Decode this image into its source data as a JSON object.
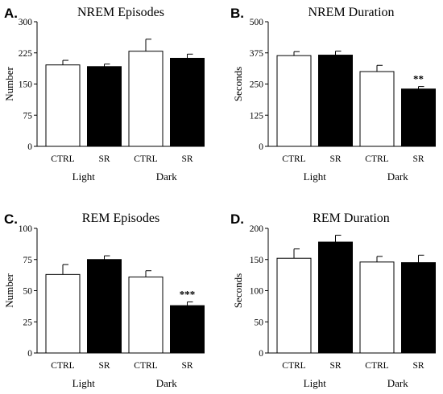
{
  "chart_data": [
    {
      "type": "bar",
      "letter": "A.",
      "title": "NREM Episodes",
      "ylabel": "Number",
      "ylim": [
        0,
        300
      ],
      "yticks": [
        0,
        75,
        150,
        225,
        300
      ],
      "ytick_labels": [
        "0",
        "75",
        "150",
        "225",
        "300"
      ],
      "categories": [
        "CTRL",
        "SR",
        "CTRL",
        "SR"
      ],
      "groups": [
        "Light",
        "Dark"
      ],
      "values": [
        196,
        192,
        229,
        212
      ],
      "errors": [
        11,
        6,
        29,
        10
      ],
      "fills": [
        "#ffffff",
        "#000000",
        "#ffffff",
        "#000000"
      ],
      "significance": [
        "",
        "",
        "",
        ""
      ]
    },
    {
      "type": "bar",
      "letter": "B.",
      "title": "NREM Duration",
      "ylabel": "Seconds",
      "ylim": [
        0,
        500
      ],
      "yticks": [
        0,
        125,
        250,
        375,
        500
      ],
      "ytick_labels": [
        "0",
        "125",
        "250",
        "375",
        "500"
      ],
      "categories": [
        "CTRL",
        "SR",
        "CTRL",
        "SR"
      ],
      "groups": [
        "Light",
        "Dark"
      ],
      "values": [
        364,
        366,
        300,
        230
      ],
      "errors": [
        16,
        16,
        25,
        10
      ],
      "fills": [
        "#ffffff",
        "#000000",
        "#ffffff",
        "#000000"
      ],
      "significance": [
        "",
        "",
        "",
        "**"
      ]
    },
    {
      "type": "bar",
      "letter": "C.",
      "title": "REM Episodes",
      "ylabel": "Number",
      "ylim": [
        0,
        100
      ],
      "yticks": [
        0,
        25,
        50,
        75,
        100
      ],
      "ytick_labels": [
        "0",
        "25",
        "50",
        "75",
        "100"
      ],
      "categories": [
        "CTRL",
        "SR",
        "CTRL",
        "SR"
      ],
      "groups": [
        "Light",
        "Dark"
      ],
      "values": [
        63,
        75,
        61,
        38
      ],
      "errors": [
        8,
        3,
        5,
        3
      ],
      "fills": [
        "#ffffff",
        "#000000",
        "#ffffff",
        "#000000"
      ],
      "significance": [
        "",
        "",
        "",
        "***"
      ]
    },
    {
      "type": "bar",
      "letter": "D.",
      "title": "REM Duration",
      "ylabel": "Seconds",
      "ylim": [
        0,
        200
      ],
      "yticks": [
        0,
        50,
        100,
        150,
        200
      ],
      "ytick_labels": [
        "0",
        "50",
        "100",
        "150",
        "200"
      ],
      "categories": [
        "CTRL",
        "SR",
        "CTRL",
        "SR"
      ],
      "groups": [
        "Light",
        "Dark"
      ],
      "values": [
        152,
        178,
        146,
        145
      ],
      "errors": [
        15,
        11,
        9,
        12
      ],
      "fills": [
        "#ffffff",
        "#000000",
        "#ffffff",
        "#000000"
      ],
      "significance": [
        "",
        "",
        "",
        ""
      ]
    }
  ]
}
